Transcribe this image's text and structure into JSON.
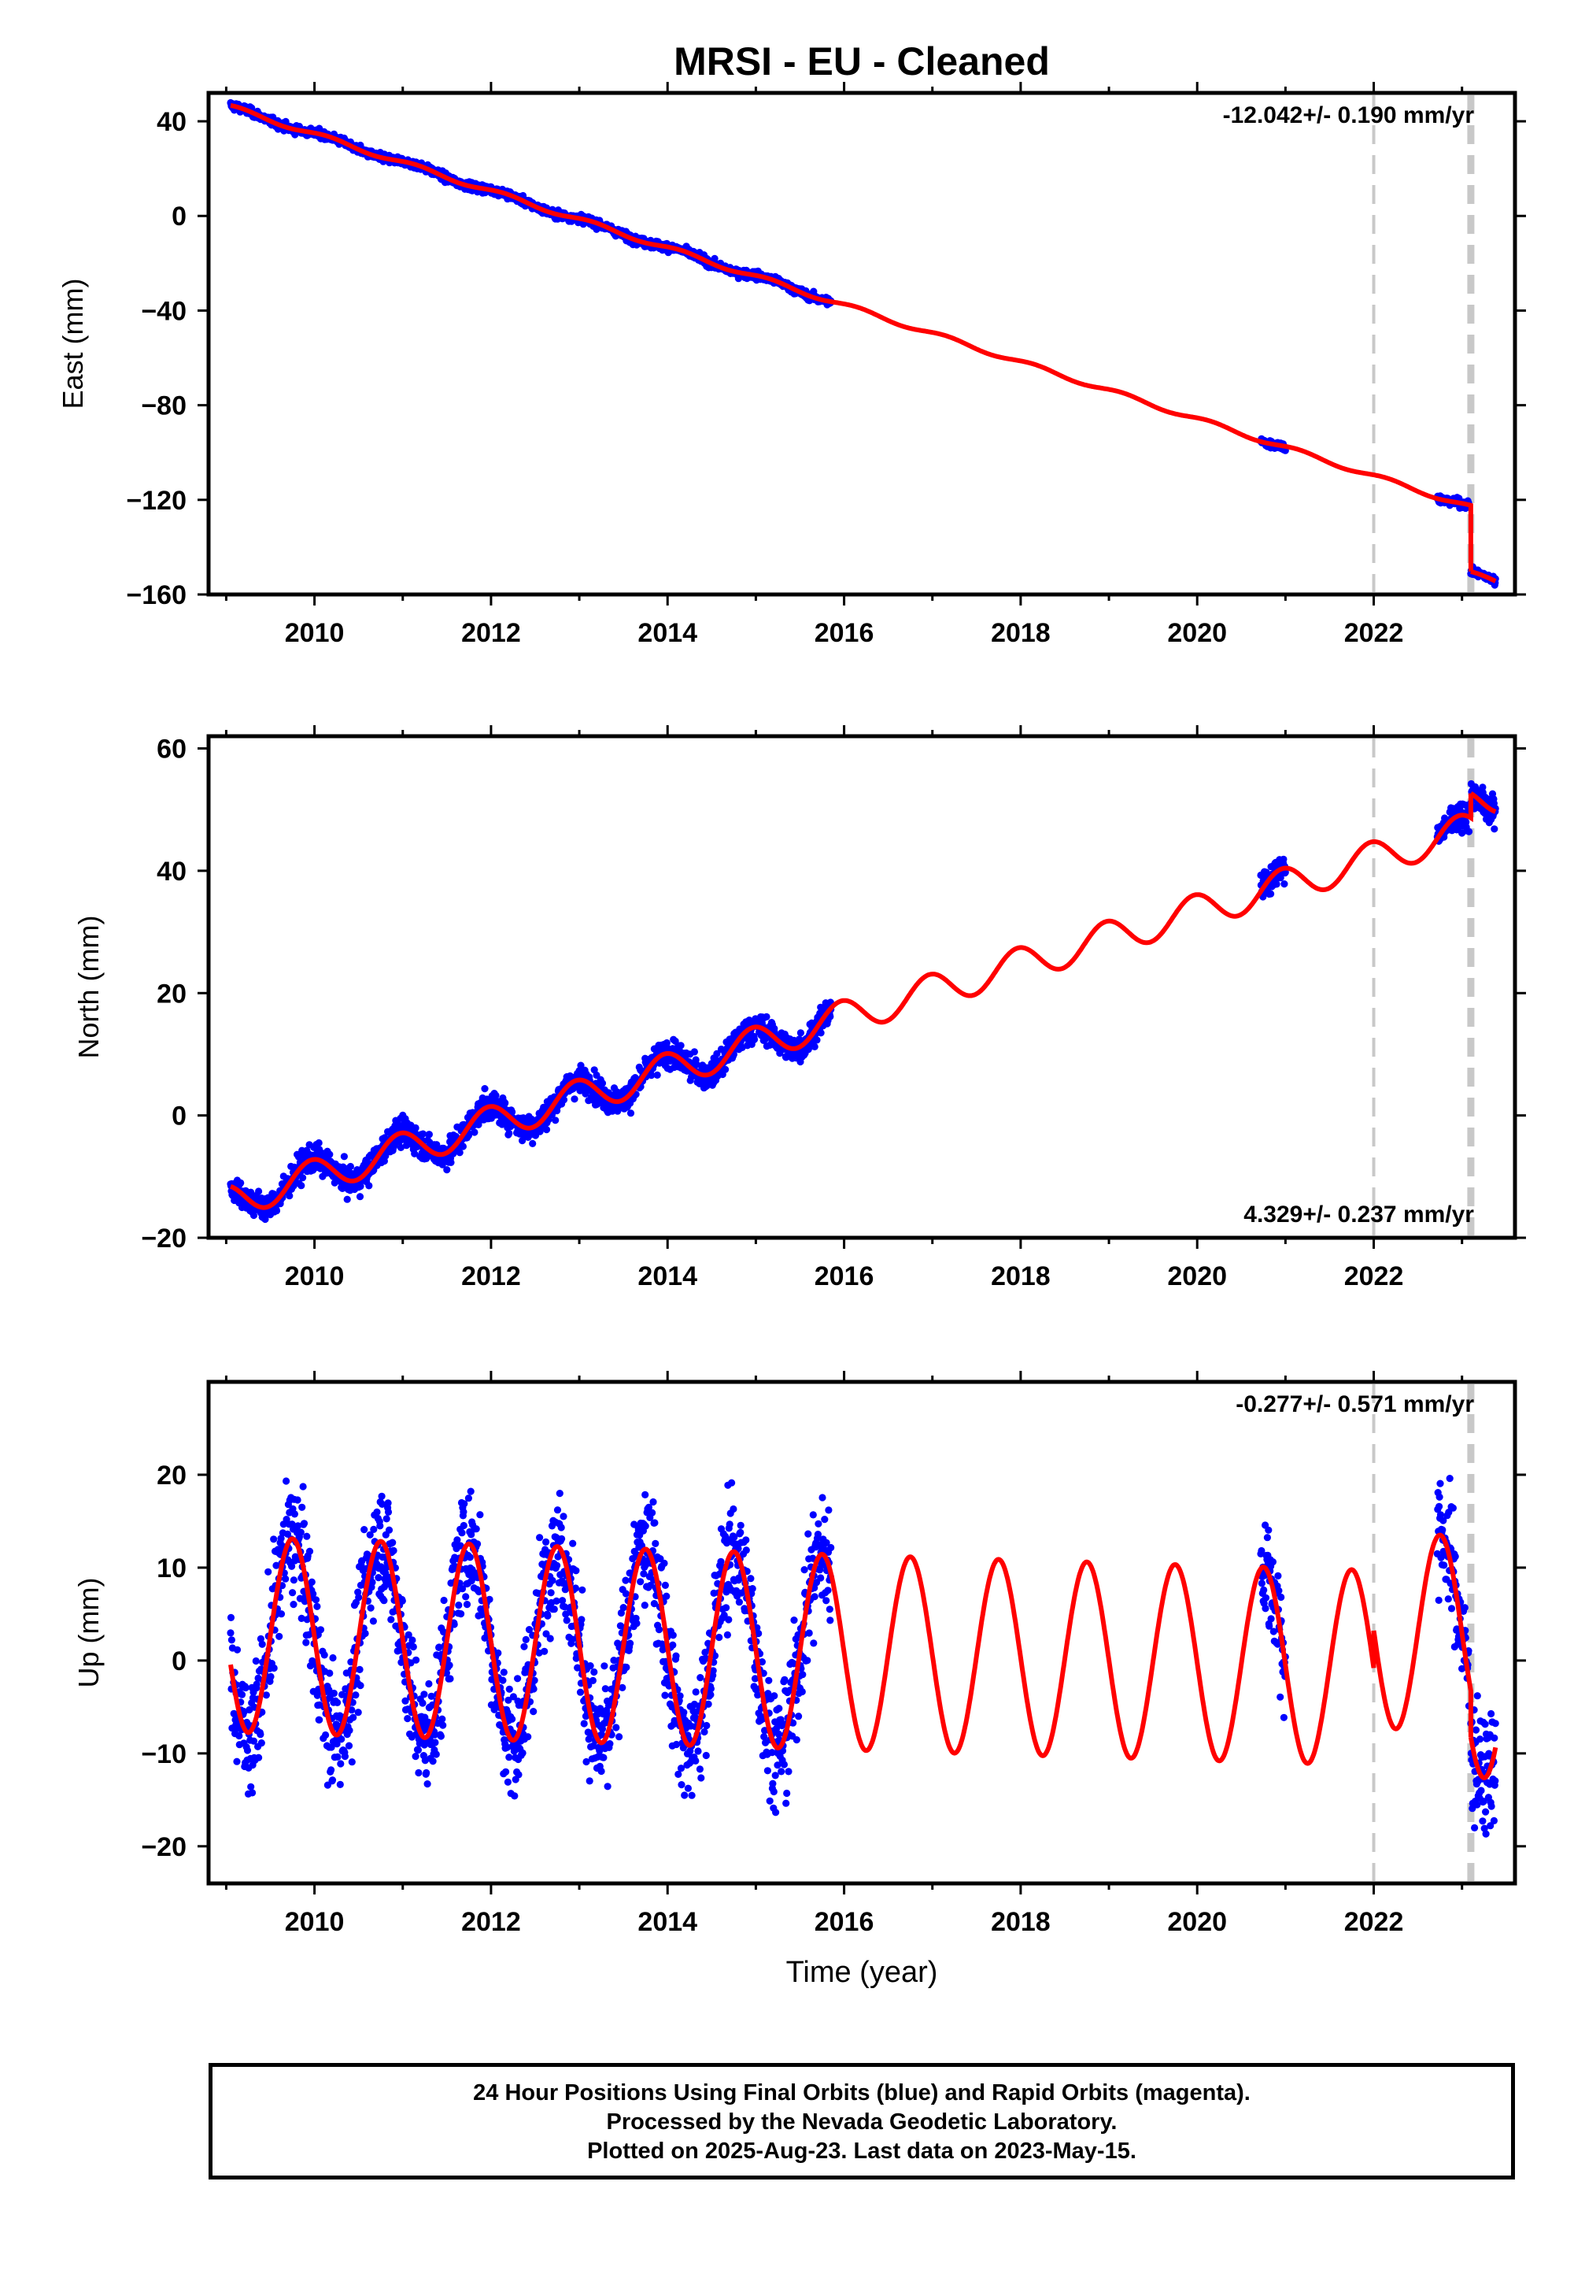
{
  "title": "MRSI  - EU - Cleaned",
  "xlabel": "Time (year)",
  "footer": {
    "line1": "24 Hour Positions Using Final Orbits (blue) and Rapid Orbits (magenta).",
    "line2": "Processed by the Nevada Geodetic Laboratory.",
    "line3": "Plotted on 2025-Aug-23. Last data on 2023-May-15."
  },
  "colors": {
    "data": "#0000ff",
    "model": "#ff0000",
    "event": "#c8c8c8",
    "frame": "#000000"
  },
  "chart_data": [
    {
      "type": "scatter",
      "component": "east",
      "ylabel": "East (mm)",
      "rate": "-12.042+/- 0.190 mm/yr",
      "rate_position": "top-right",
      "xlim": [
        2008.8,
        2023.6
      ],
      "ylim": [
        -160,
        52
      ],
      "xticks": [
        2010,
        2012,
        2014,
        2016,
        2018,
        2020,
        2022
      ],
      "yticks": [
        40,
        0,
        -40,
        -80,
        -120,
        -160
      ],
      "tick_labels_y": [
        "40",
        "0",
        "−40",
        "−80",
        "−120",
        "−160"
      ],
      "event_lines": [
        2022.0,
        2023.1
      ],
      "data_segments": [
        [
          2009.05,
          2015.85
        ],
        [
          2020.72,
          2021.0
        ],
        [
          2022.72,
          2023.08
        ],
        [
          2023.1,
          2023.38
        ]
      ],
      "model": {
        "intercept_year": 2009.05,
        "intercept": 46.0,
        "rate": -12.042,
        "annual_sin": 0.8,
        "annual_cos": 0.5,
        "offsets": [
          {
            "year": 2023.1,
            "value": -28.0
          }
        ]
      },
      "scatter_mm": 1.2
    },
    {
      "type": "scatter",
      "component": "north",
      "ylabel": "North (mm)",
      "rate": "4.329+/- 0.237 mm/yr",
      "rate_position": "bottom-right",
      "xlim": [
        2008.8,
        2023.6
      ],
      "ylim": [
        -20,
        62
      ],
      "xticks": [
        2010,
        2012,
        2014,
        2016,
        2018,
        2020,
        2022
      ],
      "yticks": [
        60,
        40,
        20,
        0,
        -20
      ],
      "tick_labels_y": [
        "60",
        "40",
        "20",
        "0",
        "−20"
      ],
      "event_lines": [
        2022.0,
        2023.1
      ],
      "data_segments": [
        [
          2009.05,
          2015.85
        ],
        [
          2020.72,
          2021.0
        ],
        [
          2022.72,
          2023.08
        ],
        [
          2023.1,
          2023.38
        ]
      ],
      "model": {
        "intercept_year": 2009.05,
        "intercept": -14.0,
        "rate": 4.329,
        "annual_sin": -0.6,
        "annual_cos": 2.7,
        "offsets": [
          {
            "year": 2023.1,
            "value": 4.0
          }
        ]
      },
      "scatter_mm": 1.6
    },
    {
      "type": "scatter",
      "component": "up",
      "ylabel": "Up (mm)",
      "rate": "-0.277+/- 0.571 mm/yr",
      "rate_position": "top-right",
      "xlim": [
        2008.8,
        2023.6
      ],
      "ylim": [
        -24,
        30
      ],
      "xticks": [
        2010,
        2012,
        2014,
        2016,
        2018,
        2020,
        2022
      ],
      "yticks": [
        20,
        10,
        0,
        -10,
        -20
      ],
      "tick_labels_y": [
        "20",
        "10",
        "0",
        "−10",
        "−20"
      ],
      "event_lines": [
        2022.0,
        2023.1
      ],
      "data_segments": [
        [
          2009.05,
          2015.85
        ],
        [
          2020.72,
          2021.0
        ],
        [
          2022.72,
          2023.08
        ],
        [
          2023.1,
          2023.38
        ]
      ],
      "model": {
        "intercept_year": 2009.05,
        "intercept": 2.8,
        "rate": -0.277,
        "annual_sin": -10.5,
        "annual_cos": 0.0,
        "offsets": [
          {
            "year": 2022.0,
            "value": 4.0
          },
          {
            "year": 2023.1,
            "value": -5.0
          }
        ]
      },
      "scatter_mm": 4.5
    }
  ]
}
